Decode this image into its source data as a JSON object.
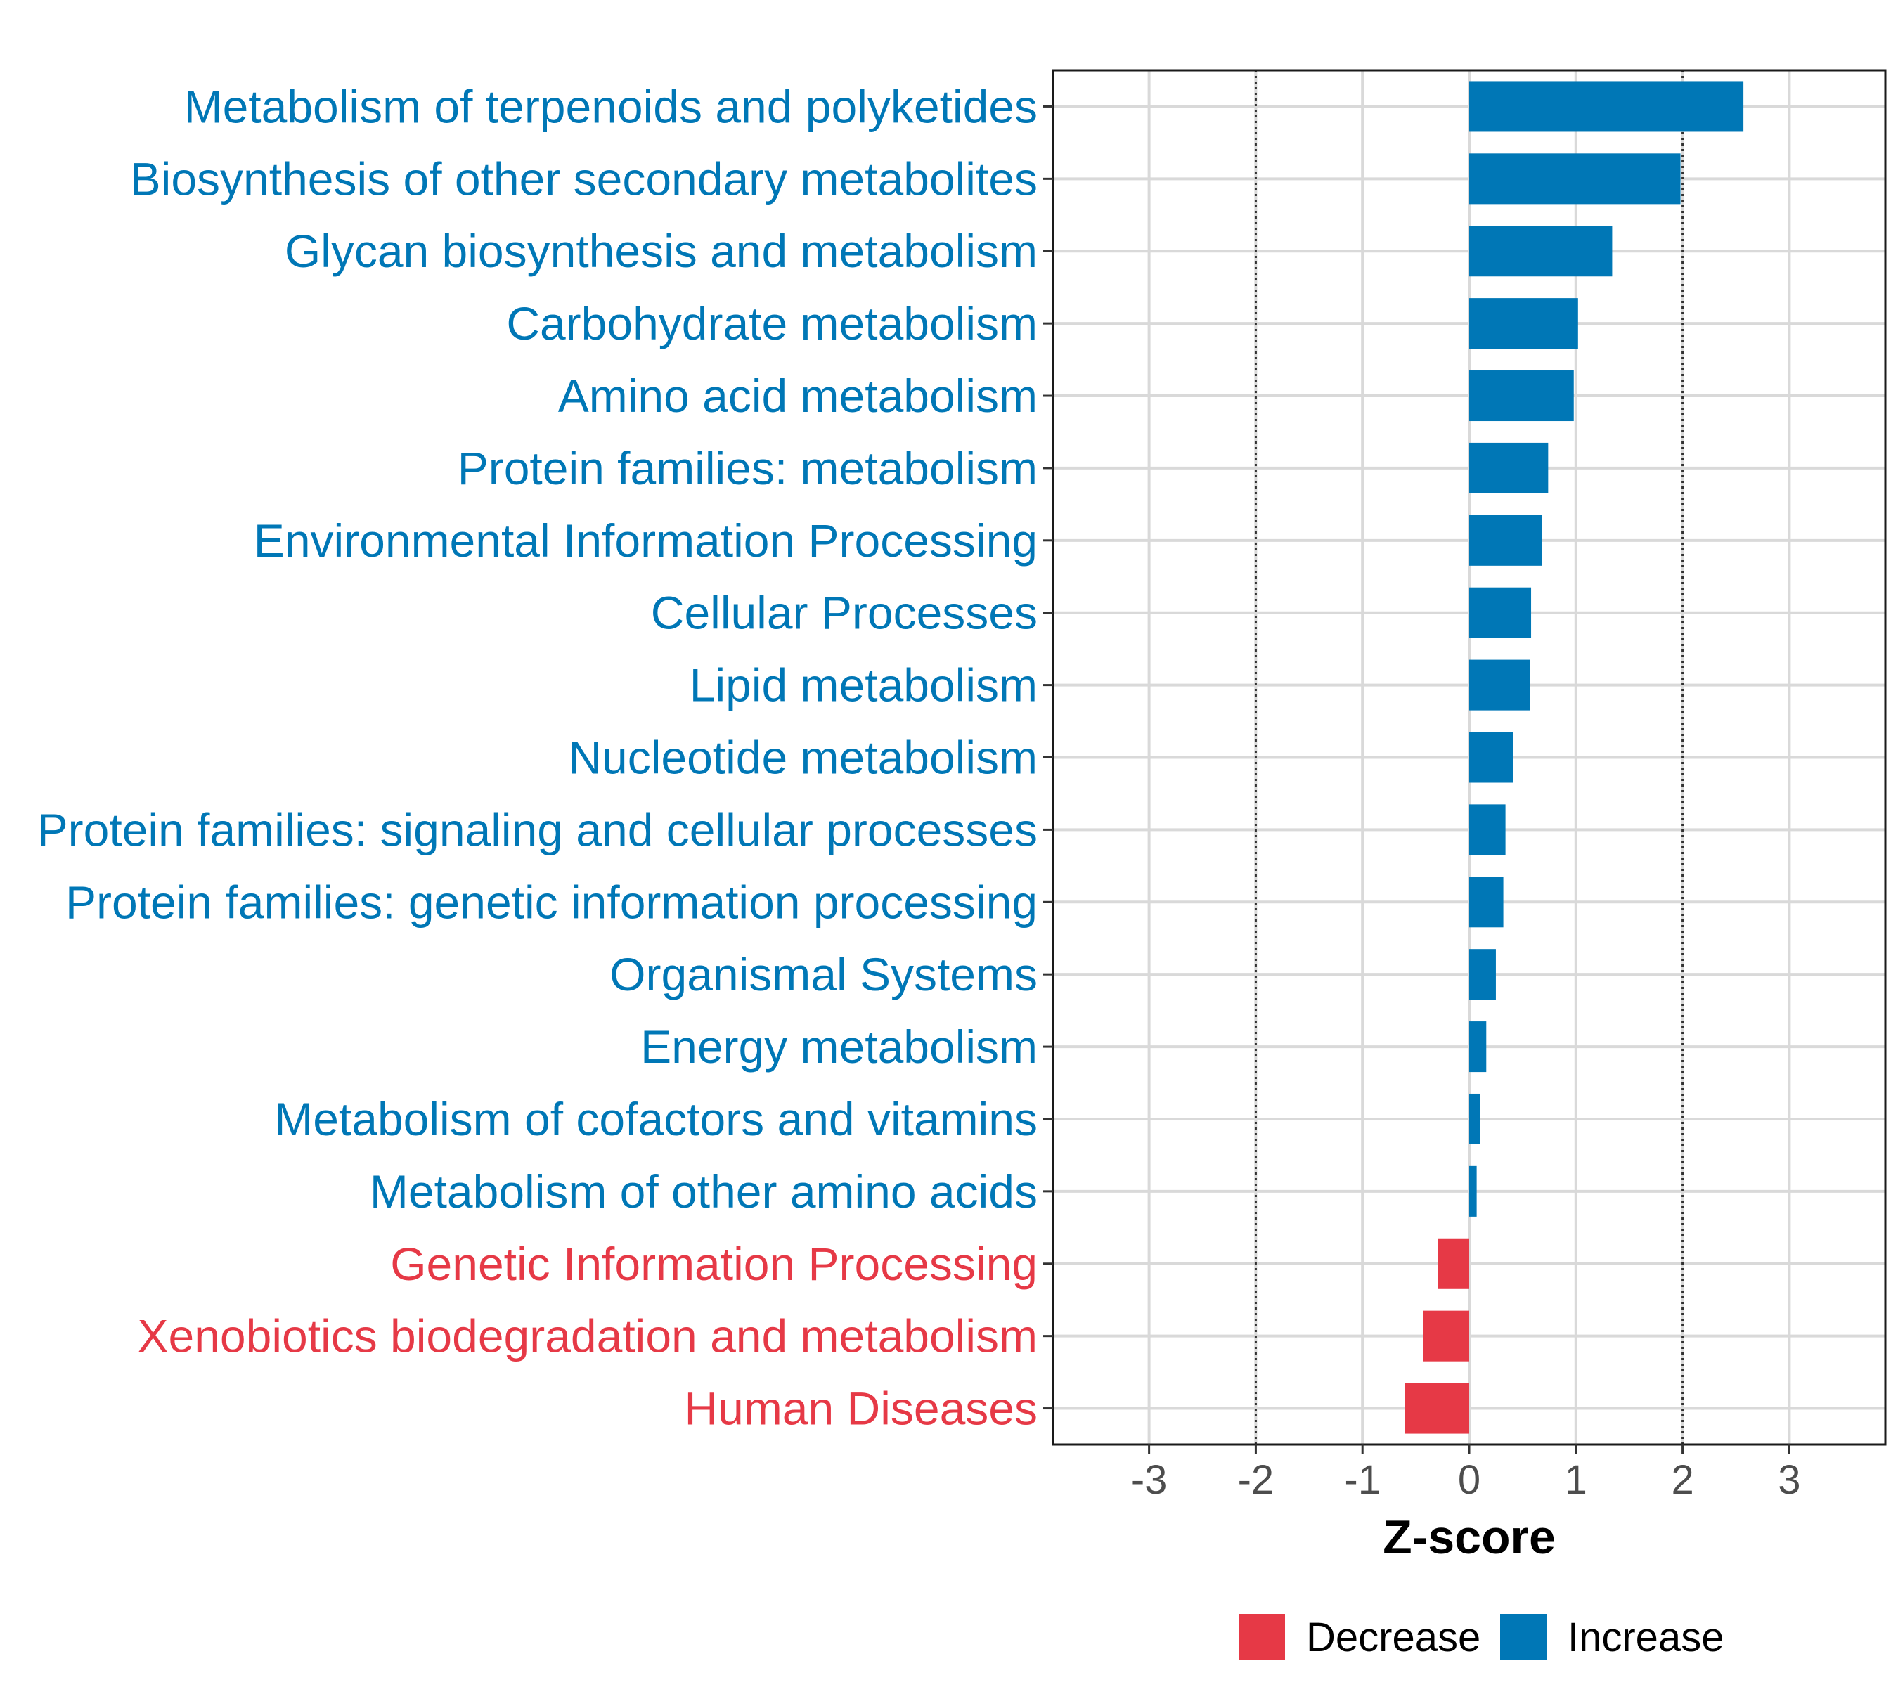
{
  "chart_data": {
    "type": "bar",
    "orientation": "horizontal",
    "xlabel": "Z-score",
    "ylabel": "",
    "xlim": [
      -3.9,
      3.9
    ],
    "xticks": [
      -3,
      -2,
      -1,
      0,
      1,
      2,
      3
    ],
    "reference_lines": [
      -2,
      2
    ],
    "grid": true,
    "legend_position": "bottom",
    "colors": {
      "Decrease": "#E63946",
      "Increase": "#0077B6"
    },
    "legend": [
      {
        "name": "Decrease",
        "color": "#E63946"
      },
      {
        "name": "Increase",
        "color": "#0077B6"
      }
    ],
    "categories": [
      "Metabolism of terpenoids and polyketides",
      "Biosynthesis of other secondary metabolites",
      "Glycan biosynthesis and metabolism",
      "Carbohydrate metabolism",
      "Amino acid metabolism",
      "Protein families: metabolism",
      "Environmental Information Processing",
      "Cellular Processes",
      "Lipid metabolism",
      "Nucleotide metabolism",
      "Protein families: signaling and cellular processes",
      "Protein families: genetic information processing",
      "Organismal Systems",
      "Energy metabolism",
      "Metabolism of cofactors and vitamins",
      "Metabolism of other amino acids",
      "Genetic Information Processing",
      "Xenobiotics biodegradation and metabolism",
      "Human Diseases"
    ],
    "values": [
      2.57,
      1.98,
      1.34,
      1.02,
      0.98,
      0.74,
      0.68,
      0.58,
      0.57,
      0.41,
      0.34,
      0.32,
      0.25,
      0.16,
      0.1,
      0.07,
      -0.29,
      -0.43,
      -0.6
    ],
    "groups": [
      "Increase",
      "Increase",
      "Increase",
      "Increase",
      "Increase",
      "Increase",
      "Increase",
      "Increase",
      "Increase",
      "Increase",
      "Increase",
      "Increase",
      "Increase",
      "Increase",
      "Increase",
      "Increase",
      "Decrease",
      "Decrease",
      "Decrease"
    ]
  }
}
